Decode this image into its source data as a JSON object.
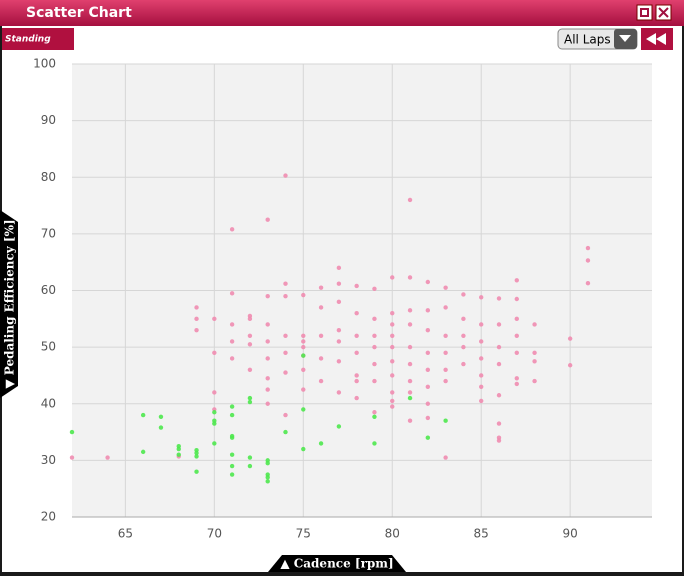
{
  "window": {
    "title": "Scatter Chart",
    "logo": "Standing",
    "lap_select": "All Laps"
  },
  "chart_data": {
    "type": "scatter",
    "x_label": "▲ Cadence [rpm]",
    "y_label": "▼ Pedaling Efficiency [%]",
    "xlim": [
      62,
      94.6
    ],
    "ylim": [
      20,
      100
    ],
    "xticks": [
      65,
      70,
      75,
      80,
      85,
      90
    ],
    "yticks": [
      20,
      30,
      40,
      50,
      60,
      70,
      80,
      90,
      100
    ],
    "grid": true,
    "series": [
      {
        "color": "#f08cb0",
        "x": [
          62,
          64,
          68,
          69,
          69,
          69,
          70,
          70,
          70,
          70,
          71,
          71,
          71,
          71,
          71,
          72,
          72,
          72,
          72,
          72,
          73,
          73,
          73,
          73,
          73,
          73,
          73,
          73,
          74,
          74,
          74,
          74,
          74,
          74,
          74,
          75,
          75,
          75,
          75,
          75,
          75,
          75,
          76,
          76,
          76,
          76,
          76,
          77,
          77,
          77,
          77,
          77,
          77,
          77,
          78,
          78,
          78,
          78,
          78,
          78,
          78,
          79,
          79,
          79,
          79,
          79,
          79,
          79,
          80,
          80,
          80,
          80,
          80,
          80,
          80,
          80,
          80,
          80,
          81,
          81,
          81,
          81,
          81,
          81,
          81,
          81,
          81,
          82,
          82,
          82,
          82,
          82,
          82,
          82,
          82,
          83,
          83,
          83,
          83,
          83,
          83,
          83,
          84,
          84,
          84,
          84,
          84,
          85,
          85,
          85,
          85,
          85,
          85,
          85,
          86,
          86,
          86,
          86,
          86,
          86,
          86,
          86,
          87,
          87,
          87,
          87,
          87,
          87,
          87,
          88,
          88,
          88,
          88,
          90,
          90,
          91,
          91,
          91
        ],
        "values": [
          30.5,
          30.5,
          30.7,
          57,
          55,
          53,
          55,
          49,
          42,
          39,
          70.8,
          59.5,
          54,
          51,
          48,
          55.5,
          55,
          52,
          50.5,
          46,
          72.5,
          59,
          54,
          51,
          48,
          44.5,
          42.5,
          40,
          80.3,
          61.2,
          59,
          52,
          49,
          45.5,
          38,
          59.2,
          52,
          51,
          50,
          48.5,
          46,
          42.5,
          60.5,
          57,
          52,
          48,
          44,
          64,
          61.2,
          58,
          53,
          51,
          47.5,
          42,
          60.8,
          56,
          52,
          49,
          45,
          44,
          41,
          60.3,
          55,
          52,
          50,
          47,
          44,
          38.5,
          62.3,
          56,
          54,
          52,
          50,
          47.5,
          45,
          42,
          40.5,
          39.5,
          76,
          62.3,
          56.5,
          54,
          50,
          47,
          44,
          42,
          37,
          61.5,
          56.5,
          53,
          49,
          46,
          43,
          40,
          37.5,
          60.5,
          57,
          52,
          49,
          46,
          44,
          30.5,
          59.3,
          55,
          52,
          50,
          47,
          58.8,
          54,
          51,
          48,
          45,
          43,
          40.5,
          58.6,
          54,
          50,
          47,
          41.5,
          36.5,
          34,
          33.5,
          61.8,
          58.5,
          55,
          52,
          49,
          44.5,
          43.5,
          54,
          49,
          47.5,
          44,
          51.5,
          46.8,
          67.5,
          65.3,
          61.3
        ]
      },
      {
        "color": "#4ee84e",
        "x": [
          62,
          66,
          66,
          67,
          67,
          68,
          68,
          68,
          69,
          69,
          69,
          69,
          70,
          70,
          70,
          70,
          71,
          71,
          71,
          71,
          71,
          71,
          71,
          72,
          72,
          72,
          72,
          73,
          73,
          73,
          73,
          73,
          74,
          75,
          75,
          75,
          76,
          77,
          79,
          79,
          81,
          82,
          83
        ],
        "values": [
          35,
          38,
          31.5,
          37.7,
          35.8,
          32.5,
          32,
          31,
          31.8,
          31.3,
          30.7,
          28,
          38.5,
          37,
          36.5,
          33,
          39.5,
          38,
          34.3,
          34,
          31,
          29,
          27.5,
          41,
          40.3,
          30.5,
          29,
          30,
          29.5,
          27.5,
          27,
          26.3,
          35,
          39,
          32,
          48.5,
          33,
          36,
          37.7,
          33,
          41,
          34,
          37
        ]
      }
    ]
  }
}
